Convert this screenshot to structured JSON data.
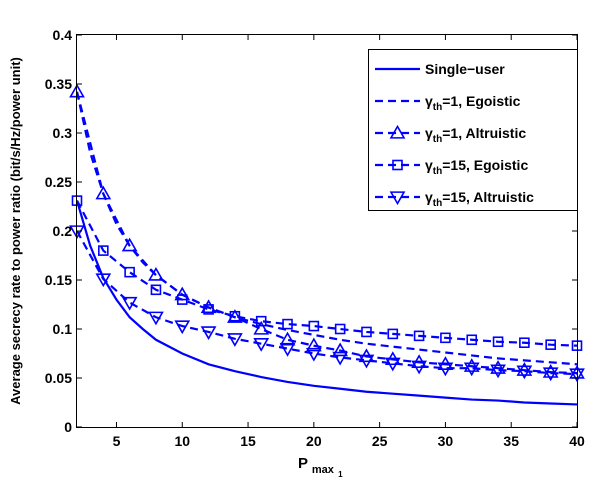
{
  "chart_data": {
    "type": "line",
    "xlabel": "P",
    "xlabel_sub": "max",
    "xlabel_subsub": "1",
    "ylabel": "Average secrecy rate to power ratio (bit/s/Hz/power unit)",
    "xlim": [
      2,
      40
    ],
    "ylim": [
      0,
      0.4
    ],
    "xticks": [
      5,
      10,
      15,
      20,
      25,
      30,
      35,
      40
    ],
    "yticks": [
      0,
      0.05,
      0.1,
      0.15,
      0.2,
      0.25,
      0.3,
      0.35,
      0.4
    ],
    "xtick_labels": [
      "5",
      "10",
      "15",
      "20",
      "25",
      "30",
      "35",
      "40"
    ],
    "ytick_labels": [
      "0",
      "0.05",
      "0.1",
      "0.15",
      "0.2",
      "0.25",
      "0.3",
      "0.35",
      "0.4"
    ],
    "grid": false,
    "legend_position": "top-right",
    "color": "#0000ff",
    "series": [
      {
        "name": "Single−user",
        "legend_prefix": "",
        "legend_sub": "",
        "legend_rest": "Single−user",
        "line": "solid",
        "marker": "none",
        "x": [
          2,
          3,
          4,
          5,
          6,
          7,
          8,
          10,
          12,
          14,
          16,
          18,
          20,
          22,
          24,
          26,
          28,
          30,
          32,
          34,
          36,
          38,
          40
        ],
        "y": [
          0.231,
          0.185,
          0.152,
          0.13,
          0.112,
          0.1,
          0.089,
          0.075,
          0.064,
          0.057,
          0.051,
          0.046,
          0.042,
          0.039,
          0.036,
          0.034,
          0.032,
          0.03,
          0.028,
          0.027,
          0.025,
          0.024,
          0.023
        ]
      },
      {
        "name": "γth=1, Egoistic",
        "legend_prefix": "γ",
        "legend_sub": "th",
        "legend_rest": "=1, Egoistic",
        "line": "dashed",
        "marker": "none",
        "x": [
          2,
          3,
          4,
          5,
          6,
          7,
          8,
          10,
          12,
          14,
          16,
          18,
          20,
          22,
          24,
          26,
          28,
          30,
          32,
          34,
          36,
          38,
          40
        ],
        "y": [
          0.342,
          0.28,
          0.238,
          0.207,
          0.185,
          0.168,
          0.155,
          0.135,
          0.122,
          0.112,
          0.105,
          0.099,
          0.094,
          0.089,
          0.085,
          0.082,
          0.079,
          0.076,
          0.073,
          0.07,
          0.068,
          0.066,
          0.064
        ]
      },
      {
        "name": "γth=1, Altruistic",
        "legend_prefix": "γ",
        "legend_sub": "th",
        "legend_rest": "=1, Altruistic",
        "line": "dashed",
        "marker": "triangle-up",
        "x": [
          2,
          4,
          6,
          8,
          10,
          12,
          14,
          16,
          18,
          20,
          22,
          24,
          26,
          28,
          30,
          32,
          34,
          36,
          38,
          40
        ],
        "y": [
          0.342,
          0.238,
          0.185,
          0.155,
          0.135,
          0.122,
          0.112,
          0.1,
          0.089,
          0.083,
          0.078,
          0.072,
          0.069,
          0.066,
          0.064,
          0.062,
          0.06,
          0.058,
          0.056,
          0.055
        ]
      },
      {
        "name": "γth=15, Egoistic",
        "legend_prefix": "γ",
        "legend_sub": "th",
        "legend_rest": "=15, Egoistic",
        "line": "dashed",
        "marker": "square",
        "x": [
          2,
          4,
          6,
          8,
          10,
          12,
          14,
          16,
          18,
          20,
          22,
          24,
          26,
          28,
          30,
          32,
          34,
          36,
          38,
          40
        ],
        "y": [
          0.231,
          0.18,
          0.158,
          0.14,
          0.13,
          0.12,
          0.113,
          0.108,
          0.105,
          0.103,
          0.1,
          0.097,
          0.095,
          0.093,
          0.091,
          0.089,
          0.087,
          0.086,
          0.084,
          0.083
        ]
      },
      {
        "name": "γth=15, Altruistic",
        "legend_prefix": "γ",
        "legend_sub": "th",
        "legend_rest": "=15, Altruistic",
        "line": "dashed",
        "marker": "triangle-down",
        "x": [
          2,
          4,
          6,
          8,
          10,
          12,
          14,
          16,
          18,
          20,
          22,
          24,
          26,
          28,
          30,
          32,
          34,
          36,
          38,
          40
        ],
        "y": [
          0.2,
          0.151,
          0.127,
          0.112,
          0.103,
          0.097,
          0.09,
          0.085,
          0.08,
          0.075,
          0.071,
          0.068,
          0.065,
          0.062,
          0.06,
          0.06,
          0.058,
          0.057,
          0.055,
          0.054
        ]
      }
    ]
  }
}
